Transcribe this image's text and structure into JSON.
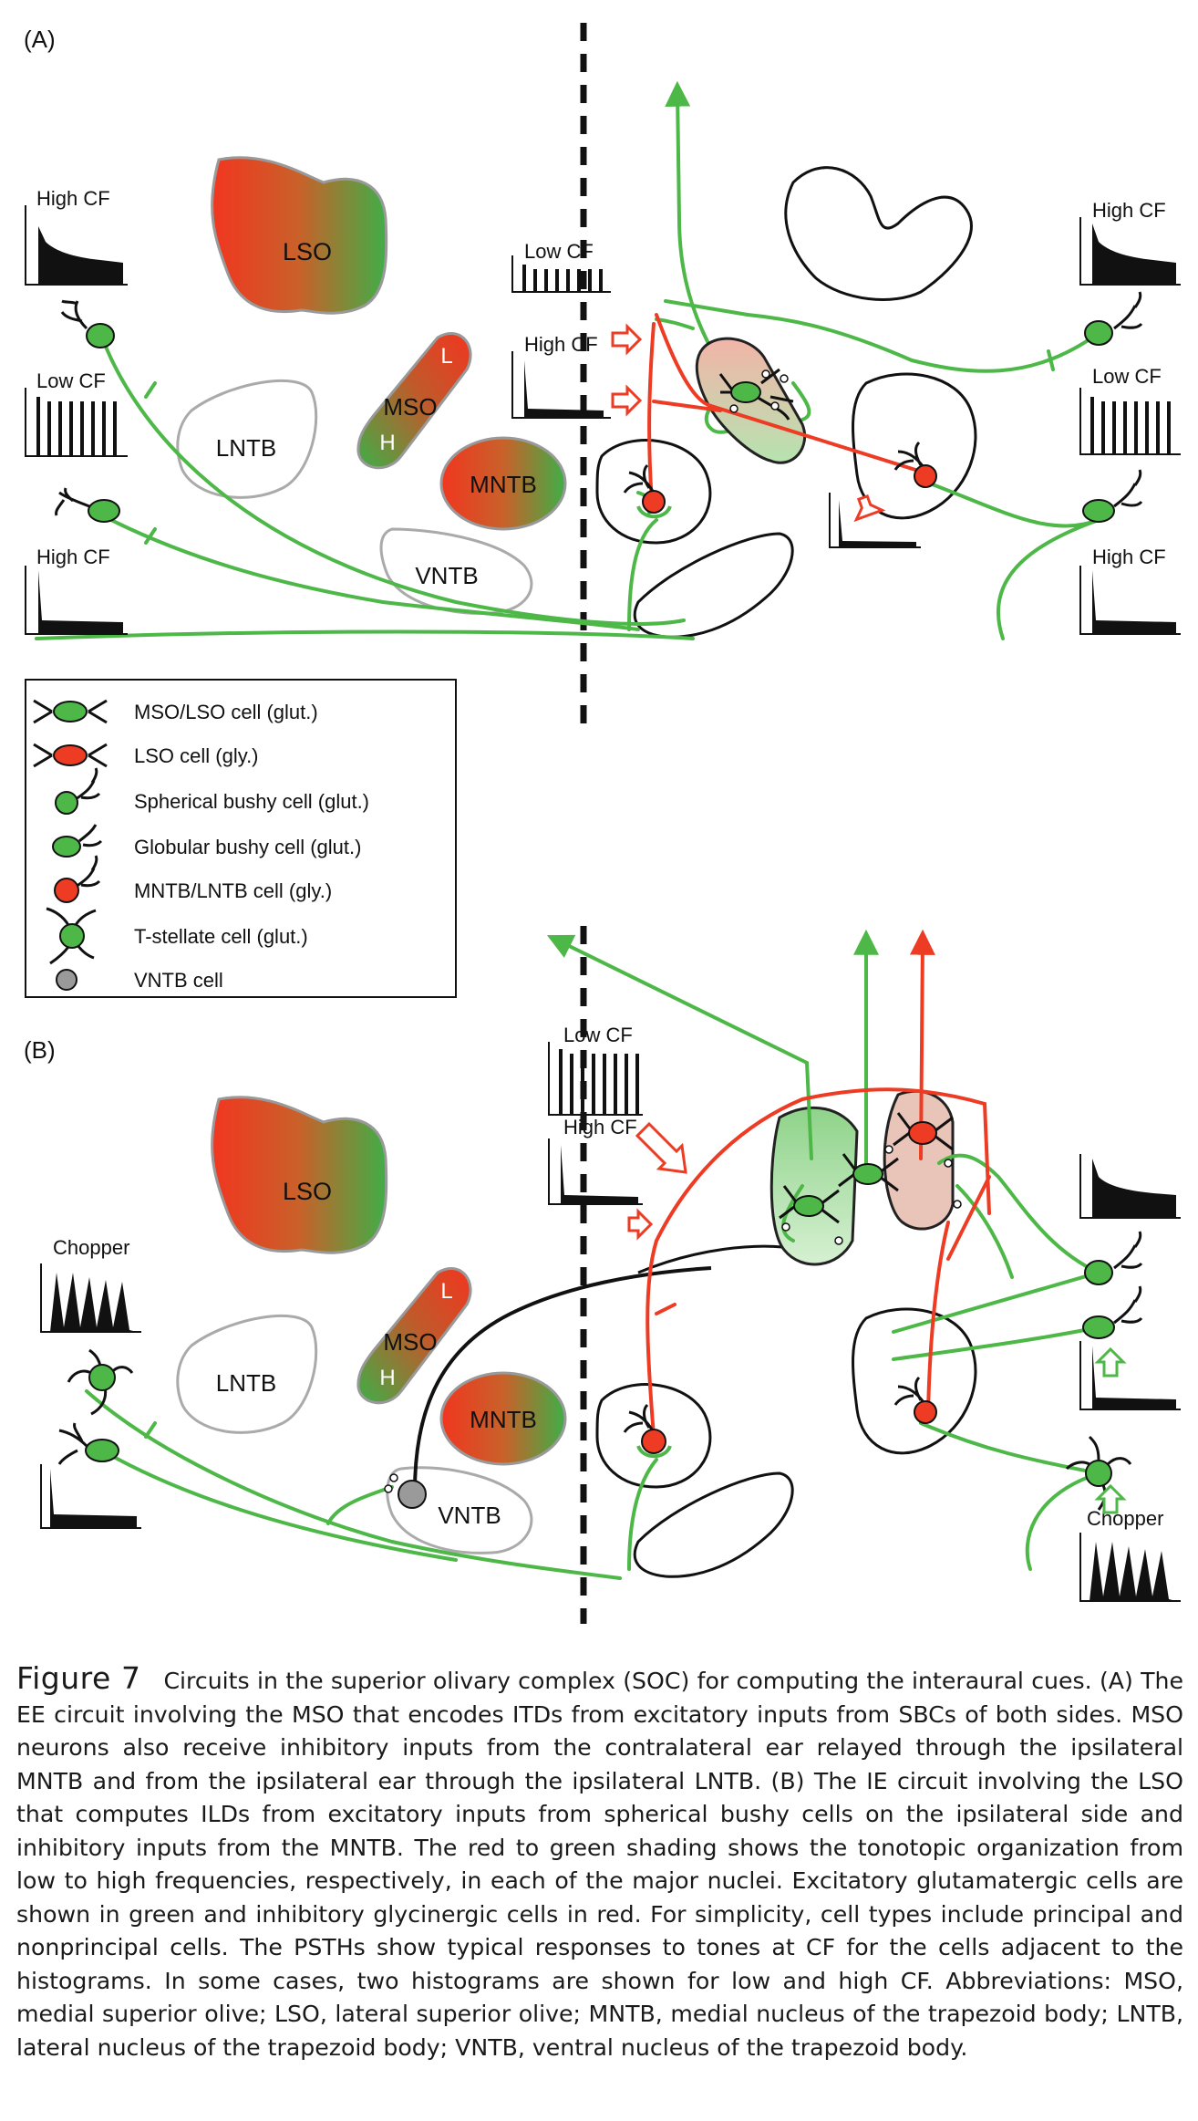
{
  "panels": {
    "a": {
      "label": "(A)",
      "nuclei": {
        "lso": "LSO",
        "mso": "MSO",
        "mso_low": "L",
        "mso_high": "H",
        "mntb": "MNTB",
        "lntb": "LNTB",
        "vntb": "VNTB"
      },
      "histograms": {
        "left_top": "High CF",
        "left_mid": "Low CF",
        "left_bottom": "High CF",
        "center_low": "Low CF",
        "center_high": "High CF",
        "right_top": "High CF",
        "right_mid": "Low CF",
        "right_bottom": "High CF"
      }
    },
    "b": {
      "label": "(B)",
      "nuclei": {
        "lso": "LSO",
        "mso": "MSO",
        "mso_low": "L",
        "mso_high": "H",
        "mntb": "MNTB",
        "lntb": "LNTB",
        "vntb": "VNTB"
      },
      "histograms": {
        "left_chopper": "Chopper",
        "center_low": "Low CF",
        "center_high": "High CF",
        "right_chopper": "Chopper"
      }
    }
  },
  "legend": {
    "items": [
      {
        "label": "MSO/LSO cell (glut.)",
        "icon": "mso-lso-cell-icon"
      },
      {
        "label": "LSO cell (gly.)",
        "icon": "lso-cell-icon"
      },
      {
        "label": "Spherical bushy cell (glut.)",
        "icon": "spherical-bushy-cell-icon"
      },
      {
        "label": "Globular bushy cell (glut.)",
        "icon": "globular-bushy-cell-icon"
      },
      {
        "label": "MNTB/LNTB cell (gly.)",
        "icon": "mntb-lntb-cell-icon"
      },
      {
        "label": "T-stellate cell (glut.)",
        "icon": "t-stellate-cell-icon"
      },
      {
        "label": "VNTB cell",
        "icon": "vntb-cell-icon"
      }
    ]
  },
  "colors": {
    "excitatory": "#4db848",
    "inhibitory": "#ee3b24",
    "vntb_cell": "#9a9a9a",
    "outline": "#111111"
  },
  "caption": {
    "figure_label": "Figure 7",
    "text": "Circuits in the superior olivary complex (SOC) for computing the interaural cues. (A) The EE circuit involving the MSO that encodes ITDs from excitatory inputs from SBCs of both sides. MSO neurons also receive inhibitory inputs from the contralateral ear relayed through the ipsilateral MNTB and from the ipsilateral ear through the ipsilateral LNTB. (B) The IE circuit involving the LSO that computes ILDs from excitatory inputs from spherical bushy cells on the ipsilateral side and inhibitory inputs from the MNTB. The red to green shading shows the tonotopic organization from low to high frequencies, respectively, in each of the major nuclei. Excitatory glutamatergic cells are shown in green and inhibitory glycinergic cells in red. For simplicity, cell types include principal and nonprincipal cells. The PSTHs show typical responses to tones at CF for the cells adjacent to the histograms. In some cases, two histograms are shown for low and high CF. Abbreviations: MSO, medial superior olive; LSO, lateral superior olive; MNTB, medial nucleus of the trapezoid body; LNTB, lateral nucleus of the trapezoid body; VNTB, ventral nucleus of the trapezoid body."
  }
}
